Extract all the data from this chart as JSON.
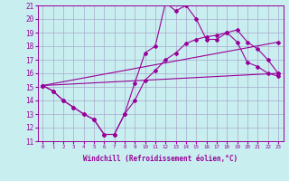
{
  "background_color": "#c8eef0",
  "grid_color": "#aaaacc",
  "line_color": "#990099",
  "xlabel": "Windchill (Refroidissement éolien,°C)",
  "xlim": [
    -0.5,
    23.5
  ],
  "ylim": [
    11,
    21
  ],
  "yticks": [
    11,
    12,
    13,
    14,
    15,
    16,
    17,
    18,
    19,
    20,
    21
  ],
  "xticks": [
    0,
    1,
    2,
    3,
    4,
    5,
    6,
    7,
    8,
    9,
    10,
    11,
    12,
    13,
    14,
    15,
    16,
    17,
    18,
    19,
    20,
    21,
    22,
    23
  ],
  "line1_x": [
    0,
    1,
    2,
    3,
    4,
    5,
    6,
    7,
    8,
    9,
    10,
    11,
    12,
    13,
    14,
    15,
    16,
    17,
    18,
    19,
    20,
    21,
    22,
    23
  ],
  "line1_y": [
    15.1,
    14.7,
    14.0,
    13.5,
    13.0,
    12.6,
    11.5,
    11.5,
    13.0,
    15.3,
    17.5,
    18.0,
    21.2,
    20.6,
    21.0,
    20.0,
    18.5,
    18.5,
    19.0,
    18.3,
    16.8,
    16.5,
    16.0,
    15.8
  ],
  "line2_x": [
    0,
    1,
    2,
    3,
    4,
    5,
    6,
    7,
    8,
    9,
    10,
    11,
    12,
    13,
    14,
    15,
    16,
    17,
    18,
    19,
    20,
    21,
    22,
    23
  ],
  "line2_y": [
    15.1,
    14.7,
    14.0,
    13.5,
    13.0,
    12.6,
    11.5,
    11.5,
    13.0,
    14.0,
    15.5,
    16.2,
    17.0,
    17.5,
    18.2,
    18.5,
    18.7,
    18.8,
    19.0,
    19.2,
    18.3,
    17.8,
    17.0,
    16.0
  ],
  "line3_x": [
    0,
    23
  ],
  "line3_y": [
    15.1,
    16.0
  ],
  "line4_x": [
    0,
    23
  ],
  "line4_y": [
    15.1,
    18.3
  ]
}
